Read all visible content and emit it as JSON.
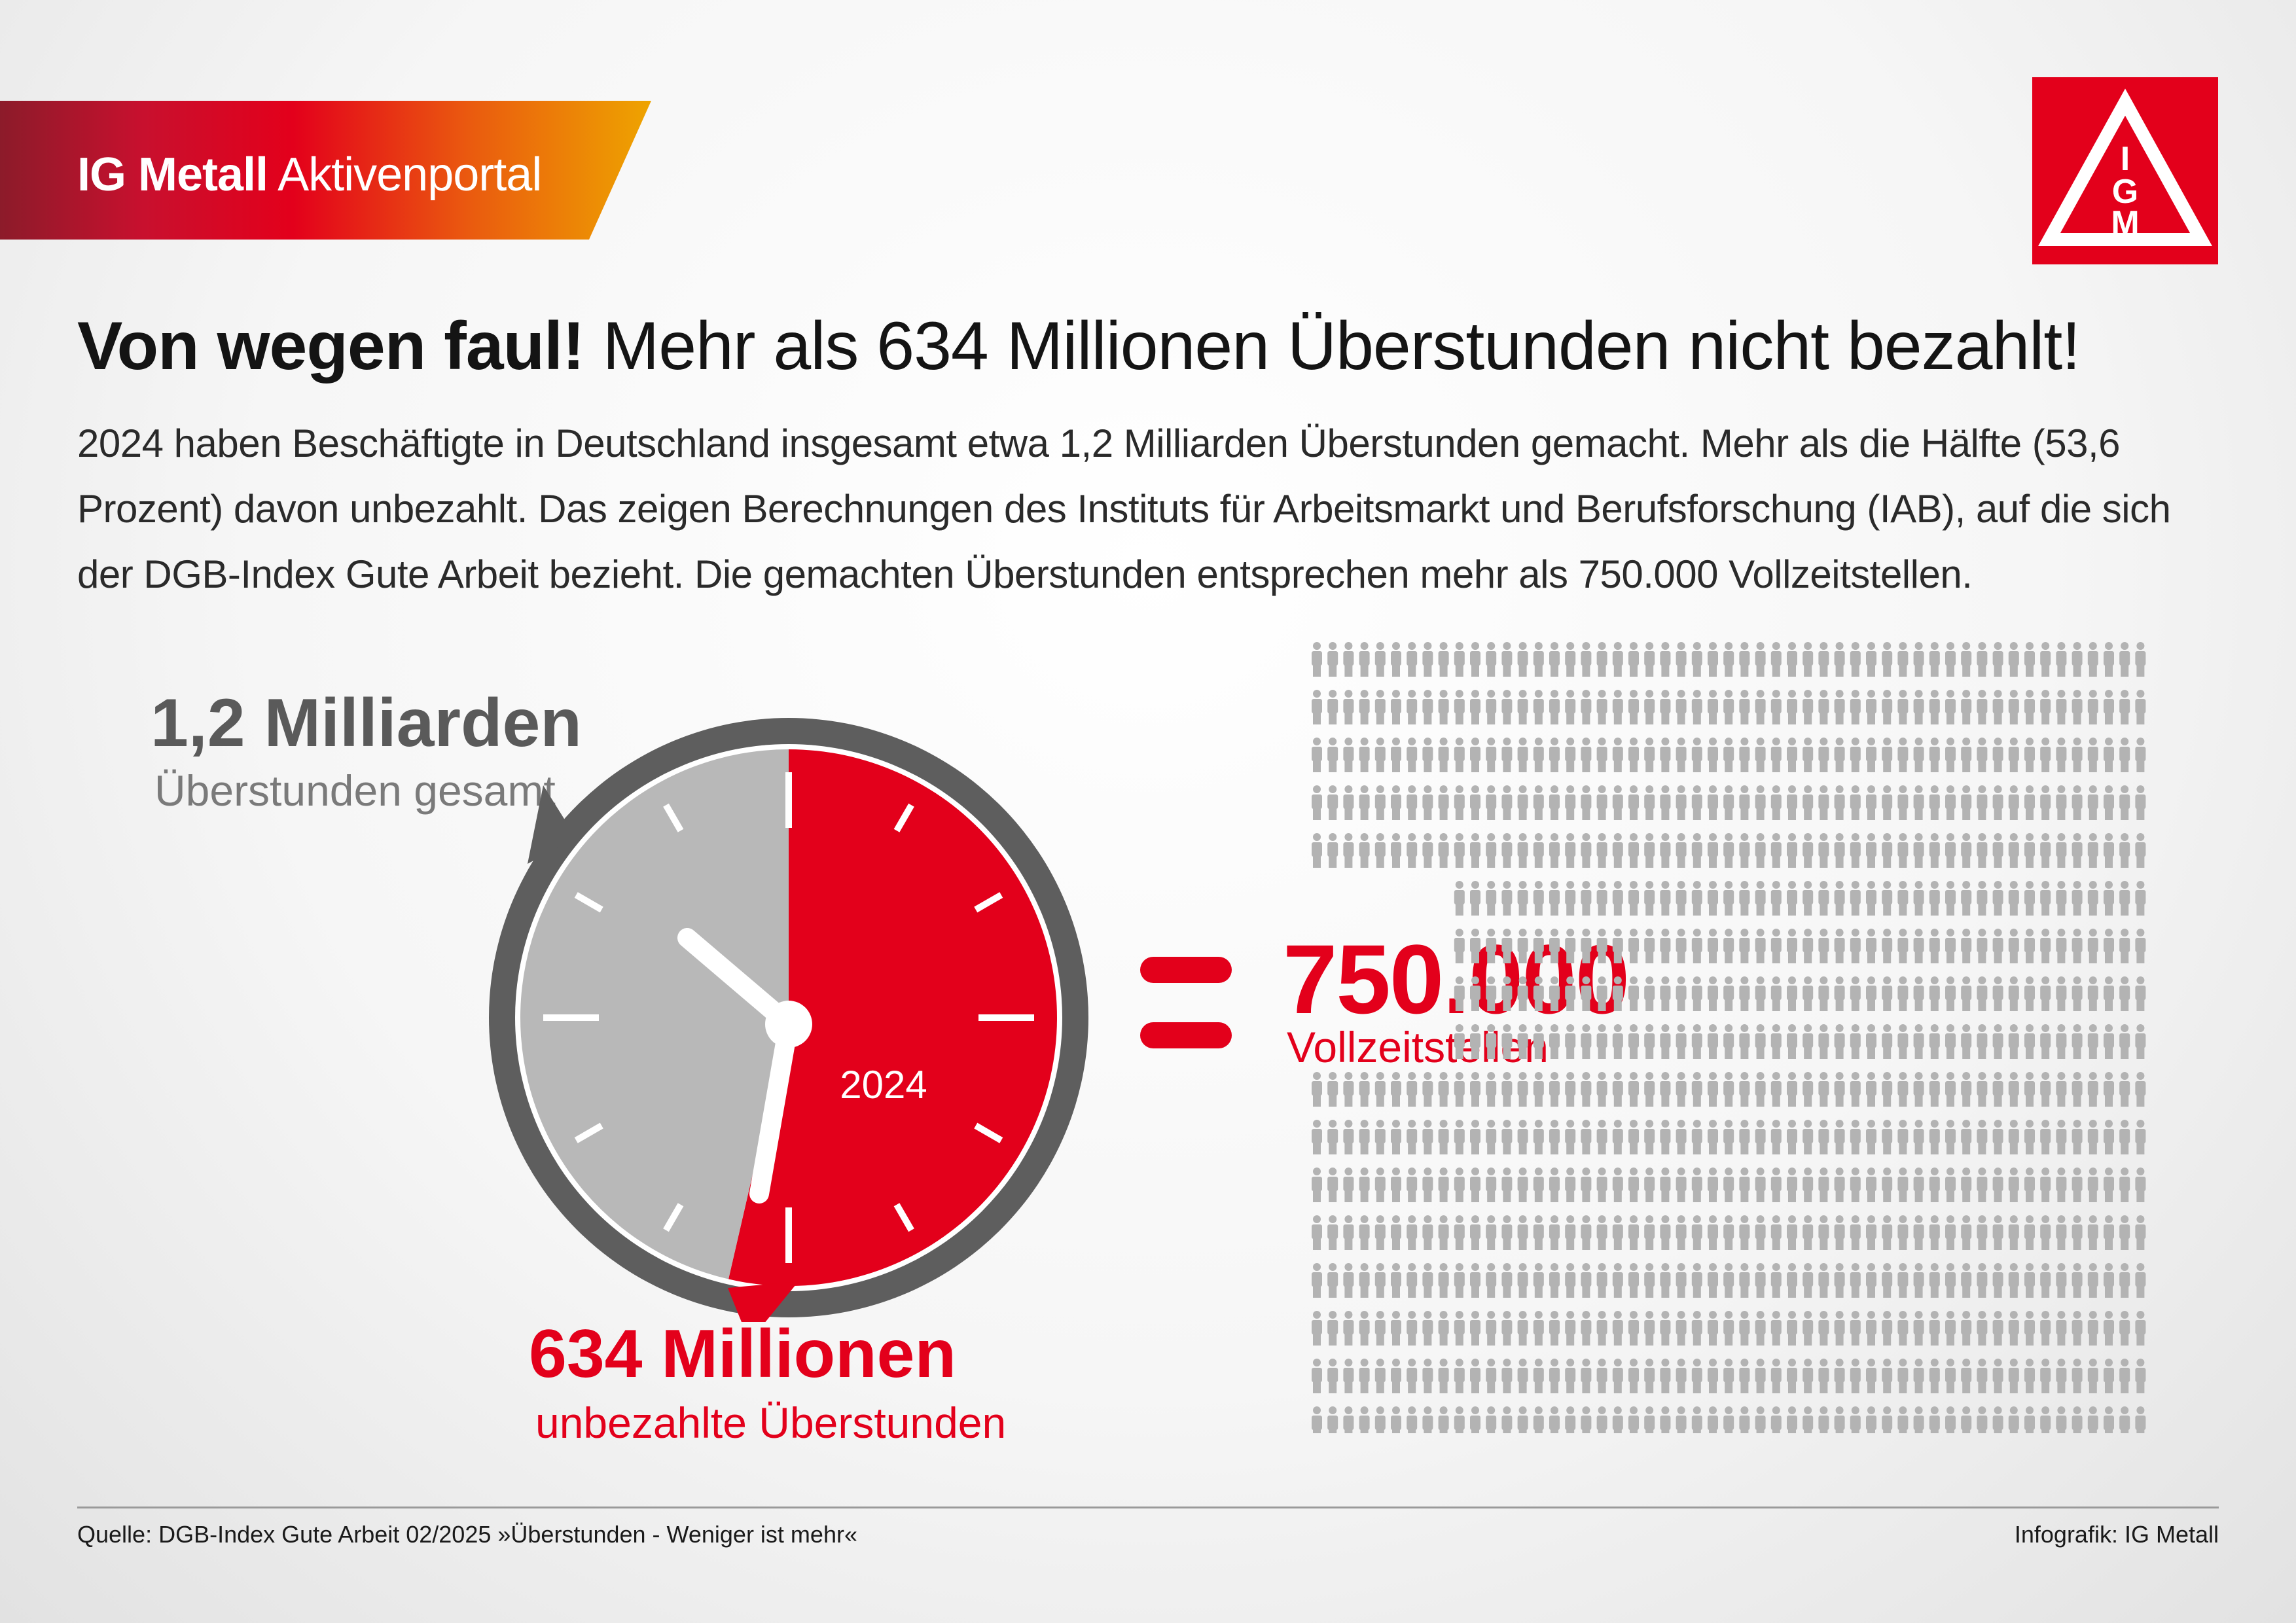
{
  "header": {
    "brand_bold": "IG Metall",
    "brand_light": "Aktivenportal",
    "logo_icon": "ig-metall-logo-icon",
    "logo_letters": [
      "I",
      "G",
      "M"
    ]
  },
  "headline": {
    "bold": "Von wegen faul!",
    "light": "Mehr als 634 Millionen Überstunden nicht bezahlt!"
  },
  "intro": "2024 haben Beschäftigte in Deutschland insgesamt etwa 1,2 Milliarden Überstunden gemacht. Mehr als die Hälfte (53,6 Prozent) davon unbezahlt. Das zeigen Berechnungen des Instituts für Arbeitsmarkt und Berufsforschung (IAB), auf die sich der DGB-Index Gute Arbeit bezieht. Die gemachten Überstunden entsprechen mehr als 750.000 Vollzeitstellen.",
  "footer": {
    "source": "Quelle: DGB-Index Gute Arbeit 02/2025  »Überstunden - Weniger ist mehr«",
    "credit": "Infografik: IG Metall"
  },
  "colors": {
    "red": "#e3001b",
    "grey_dark": "#5a5a5a",
    "grey_light": "#b8b8b8",
    "bezel": "#5e5e5e",
    "people": "#b3b3b3"
  },
  "chart_data": [
    {
      "type": "pie",
      "style": "clock",
      "year": "2024",
      "total": {
        "value": "1,2 Milliarden",
        "label": "Überstunden gesamt"
      },
      "unpaid": {
        "value": "634 Millionen",
        "label": "unbezahlte Überstunden"
      },
      "unpaid_share": 0.536,
      "slices": [
        {
          "label": "unbezahlte Überstunden",
          "value": 0.536,
          "color": "#e3001b"
        },
        {
          "label": "Überstunden gesamt",
          "value": 0.464,
          "color": "#b8b8b8"
        }
      ]
    },
    {
      "type": "pictogram",
      "value": "750.000",
      "label": "Vollzeitstellen",
      "icon": "person-icon",
      "icon_color": "#b3b3b3"
    }
  ]
}
